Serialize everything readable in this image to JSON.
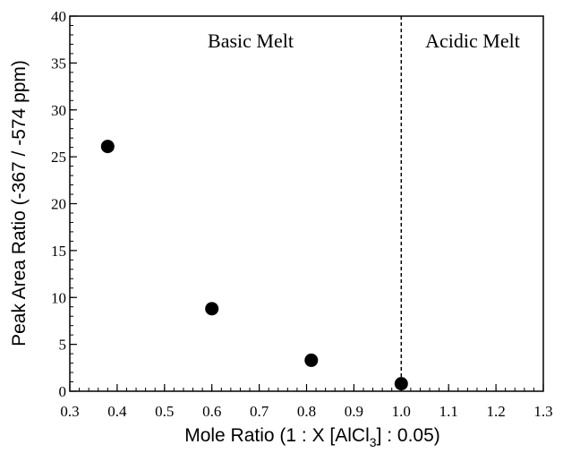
{
  "chart_data": {
    "type": "scatter",
    "title": "",
    "xlabel": "Mole Ratio (1 : X [AlCl",
    "xlabel_sub": "3",
    "xlabel_tail": "] : 0.05)",
    "ylabel": "Peak Area Ratio (-367 / -574 ppm)",
    "xlim": [
      0.3,
      1.3
    ],
    "ylim": [
      0,
      40
    ],
    "xticks": [
      "0.3",
      "0.4",
      "0.5",
      "0.6",
      "0.7",
      "0.8",
      "0.9",
      "1.0",
      "1.1",
      "1.2",
      "1.3"
    ],
    "yticks": [
      "0",
      "5",
      "10",
      "15",
      "20",
      "25",
      "30",
      "35",
      "40"
    ],
    "grid": false,
    "x": [
      0.38,
      0.6,
      0.81,
      1.0
    ],
    "y": [
      26.1,
      8.8,
      3.3,
      0.8
    ],
    "divider_x": 1.0,
    "regions": [
      "Basic Melt",
      "Acidic Melt"
    ]
  }
}
